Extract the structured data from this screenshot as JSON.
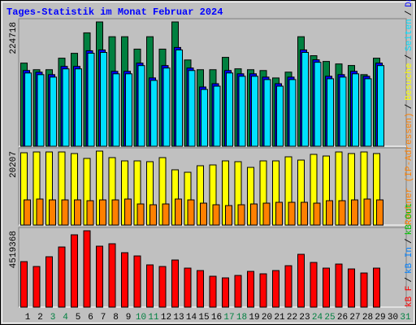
{
  "chart_data": {
    "type": "bar",
    "title": "Tages-Statistik im Monat Februar 2024",
    "categories": [
      "1",
      "2",
      "3",
      "4",
      "5",
      "6",
      "7",
      "8",
      "9",
      "10",
      "11",
      "12",
      "13",
      "14",
      "15",
      "16",
      "17",
      "18",
      "19",
      "20",
      "21",
      "22",
      "23",
      "24",
      "25",
      "26",
      "27",
      "28",
      "29",
      "30",
      "31"
    ],
    "category_colors": [
      "#000000",
      "#000000",
      "#008040",
      "#008040",
      "#000000",
      "#000000",
      "#000000",
      "#000000",
      "#000000",
      "#008040",
      "#008040",
      "#000000",
      "#000000",
      "#000000",
      "#000000",
      "#000000",
      "#008040",
      "#008040",
      "#000000",
      "#000000",
      "#000000",
      "#000000",
      "#000000",
      "#008040",
      "#008040",
      "#000000",
      "#000000",
      "#000000",
      "#000000",
      "#000000",
      "#008040"
    ],
    "legend_separator": "/",
    "panels": [
      {
        "ylim": [
          0,
          224718
        ],
        "yticks": [
          224718
        ],
        "series": [
          {
            "name": "Anfragen",
            "color": "#008040",
            "values": [
              150300,
              138400,
              138400,
              159200,
              168000,
              205000,
              224718,
              198000,
              198000,
              175600,
              198000,
              175600,
              224718,
              156000,
              138400,
              138400,
              160700,
              140000,
              138400,
              136900,
              123500,
              134000,
              198000,
              163700,
              153300,
              148800,
              146000,
              129500,
              159200,
              null,
              null
            ]
          },
          {
            "name": "Dateien",
            "color": "#0000ff",
            "values": [
              136950,
              133970,
              129510,
              144390,
              144390,
              172670,
              174150,
              135460,
              135460,
              150340,
              123560,
              145880,
              178620,
              141410,
              107190,
              113140,
              136950,
              131000,
              131000,
              125040,
              113140,
              125040,
              174150,
              156300,
              126530,
              129510,
              135460,
              126530,
              150340,
              null,
              null
            ]
          },
          {
            "name": "Seiten",
            "color": "#00e0ff",
            "values": [
              132450,
              129470,
              125010,
              139890,
              139890,
              168170,
              169650,
              130960,
              130960,
              145840,
              119060,
              141380,
              174120,
              136910,
              102690,
              108640,
              132450,
              126500,
              126500,
              120540,
              108640,
              120540,
              169650,
              151800,
              122030,
              125010,
              130960,
              122030,
              145840,
              null,
              null
            ]
          }
        ]
      },
      {
        "ylim": [
          0,
          20207
        ],
        "yticks": [
          20207
        ],
        "series": [
          {
            "name": "Besuche",
            "color": "#ffff00",
            "values": [
              19760,
              19980,
              19980,
              19980,
              19540,
              18210,
              20207,
              18430,
              17540,
              17540,
              17320,
              18430,
              15100,
              14430,
              16210,
              16430,
              17540,
              17320,
              15760,
              17540,
              17540,
              18650,
              17760,
              19320,
              18870,
              19980,
              19540,
              19980,
              19540,
              null,
              null
            ]
          },
          {
            "name": "Rechner (IP-Adressen)",
            "color": "#ff8000",
            "values": [
              6880,
              7110,
              6880,
              6880,
              6880,
              6660,
              6880,
              6880,
              7110,
              5770,
              5550,
              5770,
              7110,
              6880,
              5990,
              5550,
              5330,
              5550,
              5770,
              5990,
              6220,
              6220,
              6220,
              5990,
              6660,
              6660,
              6880,
              7110,
              6880,
              null,
              null
            ]
          }
        ]
      },
      {
        "ylim": [
          0,
          4519368
        ],
        "yticks": [
          4519368
        ],
        "series": [
          {
            "name": "kB F",
            "color": "#ff0000",
            "values": [
              2692400,
              2403900,
              2980800,
              3557800,
              4278900,
              4519368,
              3605900,
              3750100,
              3221200,
              3028900,
              2500100,
              2403900,
              2788500,
              2307700,
              2163500,
              1827000,
              1730800,
              1875000,
              2115400,
              1971200,
              2163500,
              2452000,
              3125100,
              2644300,
              2307700,
              2548100,
              2259700,
              2019300,
              2307700,
              null,
              null
            ]
          },
          {
            "name": "kB In",
            "color": "#0080ff",
            "values": [
              null,
              null,
              null,
              null,
              null,
              null,
              null,
              null,
              null,
              null,
              null,
              null,
              null,
              null,
              null,
              null,
              null,
              null,
              null,
              null,
              null,
              null,
              null,
              null,
              null,
              null,
              null,
              null,
              null,
              null,
              null
            ]
          },
          {
            "name": "kB Out",
            "color": "#00c000",
            "values": [
              null,
              null,
              null,
              null,
              null,
              null,
              null,
              null,
              null,
              null,
              null,
              null,
              null,
              null,
              null,
              null,
              null,
              null,
              null,
              null,
              null,
              null,
              null,
              null,
              null,
              null,
              null,
              null,
              null,
              null,
              null
            ]
          }
        ]
      }
    ]
  }
}
